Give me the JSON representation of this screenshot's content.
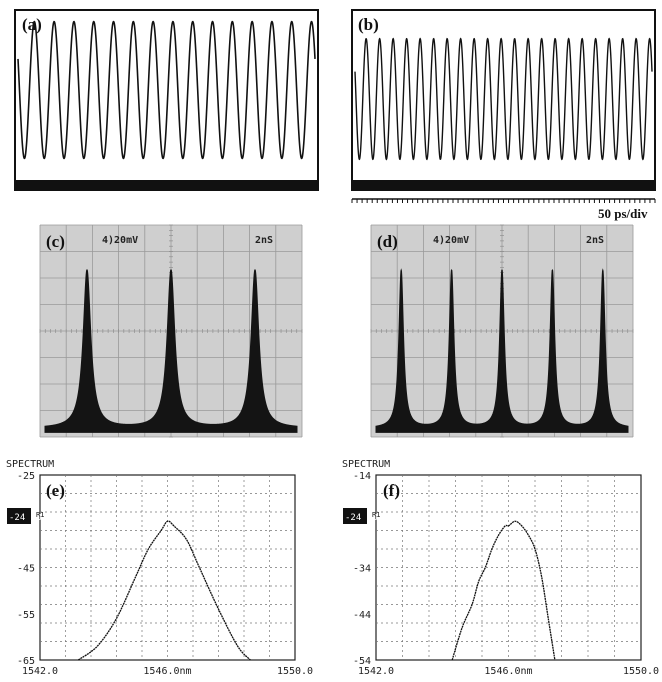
{
  "panels": {
    "a": {
      "label": "(a)"
    },
    "b": {
      "label": "(b)",
      "scale_text": "50 ps/div"
    },
    "c": {
      "label": "(c)",
      "volt_text": "4)20mV",
      "time_text": "2nS"
    },
    "d": {
      "label": "(d)",
      "volt_text": "4)20mV",
      "time_text": "2nS"
    },
    "e": {
      "label": "(e)",
      "spectrum_title": "SPECTRUM",
      "ref_badge": "-24 dB",
      "ref_small": "R1"
    },
    "f": {
      "label": "(f)",
      "spectrum_title": "SPECTRUM",
      "ref_badge": "-24 dB",
      "ref_small": "R1"
    }
  },
  "chart_data": [
    {
      "id": "a",
      "type": "line",
      "description_free": true,
      "x": [],
      "series": [
        {
          "cycles": 15,
          "min": 0.05,
          "max": 0.95
        }
      ],
      "ylim": [
        0,
        1
      ],
      "grid": false
    },
    {
      "id": "b",
      "type": "line",
      "series": [
        {
          "cycles": 22,
          "min": 0.05,
          "max": 0.95
        }
      ],
      "ylim": [
        0,
        1
      ],
      "grid": false
    },
    {
      "id": "c",
      "type": "line",
      "series": [
        {
          "peaks": 3,
          "peak_height": 0.9,
          "baseline": 0.02
        }
      ],
      "ylim": [
        0,
        1
      ],
      "grid": true
    },
    {
      "id": "d",
      "type": "line",
      "series": [
        {
          "peaks": 5,
          "peak_height": 0.9,
          "baseline": 0.02
        }
      ],
      "ylim": [
        0,
        1
      ],
      "grid": true
    },
    {
      "id": "e",
      "type": "line",
      "xlim": [
        1542.0,
        1550.0
      ],
      "ylim": [
        -65,
        -25
      ],
      "x_ticks": [
        "1542.0",
        "1546.0nm",
        "1550.0"
      ],
      "y_ticks": [
        "-25",
        "-45",
        "-55",
        "-65"
      ],
      "series": [
        {
          "x": [
            1543.2,
            1543.8,
            1544.4,
            1545.0,
            1545.4,
            1545.8,
            1546.0,
            1546.2,
            1546.6,
            1547.0,
            1547.6,
            1548.2,
            1548.6
          ],
          "y": [
            -65,
            -62,
            -56,
            -47,
            -41,
            -37,
            -35,
            -36,
            -39,
            -45,
            -54,
            -62,
            -65
          ]
        }
      ]
    },
    {
      "id": "f",
      "type": "line",
      "xlim": [
        1542.0,
        1550.0
      ],
      "ylim": [
        -54,
        -14
      ],
      "x_ticks": [
        "1542.0",
        "1546.0nm",
        "1550.0"
      ],
      "y_ticks": [
        "-14",
        "-34",
        "-44",
        "-54"
      ],
      "series": [
        {
          "x": [
            1544.3,
            1544.6,
            1544.9,
            1545.1,
            1545.3,
            1545.5,
            1545.7,
            1545.9,
            1546.0,
            1546.2,
            1546.4,
            1546.6,
            1546.8,
            1547.0,
            1547.2,
            1547.4
          ],
          "y": [
            -54,
            -47,
            -42,
            -37,
            -34,
            -30,
            -27,
            -25,
            -25,
            -24,
            -25,
            -27,
            -30,
            -36,
            -45,
            -54
          ]
        }
      ]
    }
  ]
}
